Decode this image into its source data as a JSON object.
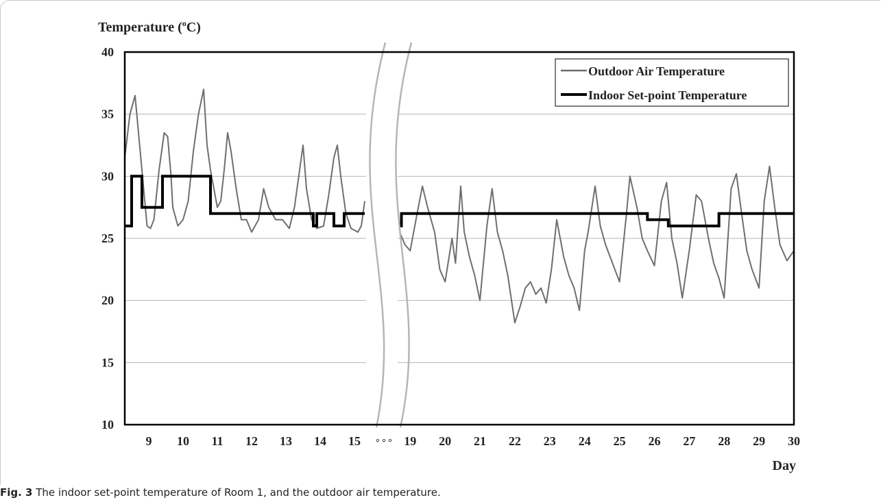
{
  "figure": {
    "caption_label": "Fig. 3",
    "caption_text": "The indoor set-point temperature of Room 1, and the outdoor air temperature."
  },
  "chart_data": {
    "type": "line",
    "ylabel_main": "Temperature (",
    "ylabel_sup": "o",
    "ylabel_end": "C)",
    "xlabel": "Day",
    "ylim": [
      10,
      40
    ],
    "yticks": [
      10,
      15,
      20,
      25,
      30,
      35,
      40
    ],
    "grid": true,
    "legend_position": "top-right",
    "axis_break": {
      "after_day": 15,
      "before_day": 19,
      "marker_text": "° ° °"
    },
    "segments": [
      {
        "xlim": [
          8.3,
          15.3
        ],
        "xticks": [
          9,
          10,
          11,
          12,
          13,
          14,
          15
        ]
      },
      {
        "xlim": [
          18.7,
          30.0
        ],
        "xticks": [
          19,
          20,
          21,
          22,
          23,
          24,
          25,
          26,
          27,
          28,
          29,
          30
        ]
      }
    ],
    "series": [
      {
        "name": "Outdoor Air Temperature",
        "color": "#6e6e6e",
        "style": "thin",
        "x": [
          8.3,
          8.45,
          8.6,
          8.75,
          8.85,
          8.95,
          9.05,
          9.15,
          9.3,
          9.45,
          9.55,
          9.65,
          9.7,
          9.85,
          10.0,
          10.15,
          10.3,
          10.45,
          10.6,
          10.7,
          10.8,
          10.9,
          11.0,
          11.1,
          11.2,
          11.3,
          11.4,
          11.55,
          11.7,
          11.85,
          12.0,
          12.2,
          12.35,
          12.5,
          12.7,
          12.9,
          13.1,
          13.25,
          13.4,
          13.5,
          13.6,
          13.75,
          13.9,
          14.1,
          14.25,
          14.4,
          14.5,
          14.6,
          14.75,
          14.9,
          15.1,
          15.2,
          15.3,
          18.7,
          18.85,
          19.0,
          19.2,
          19.35,
          19.5,
          19.7,
          19.85,
          20.0,
          20.2,
          20.3,
          20.45,
          20.55,
          20.7,
          20.85,
          21.0,
          21.2,
          21.35,
          21.5,
          21.65,
          21.8,
          22.0,
          22.15,
          22.3,
          22.45,
          22.6,
          22.75,
          22.9,
          23.05,
          23.2,
          23.4,
          23.55,
          23.7,
          23.85,
          24.0,
          24.1,
          24.3,
          24.45,
          24.6,
          24.8,
          25.0,
          25.2,
          25.3,
          25.5,
          25.65,
          25.8,
          26.0,
          26.2,
          26.35,
          26.5,
          26.65,
          26.8,
          27.0,
          27.2,
          27.35,
          27.55,
          27.7,
          27.85,
          28.0,
          28.2,
          28.35,
          28.5,
          28.65,
          28.8,
          29.0,
          29.15,
          29.3,
          29.45,
          29.6,
          29.8,
          30.0
        ],
        "y": [
          31.5,
          35.0,
          36.5,
          32.0,
          29.0,
          26.0,
          25.8,
          26.5,
          30.5,
          33.5,
          33.2,
          30.0,
          27.5,
          26.0,
          26.5,
          28.0,
          32.0,
          35.0,
          37.0,
          32.5,
          30.5,
          29.0,
          27.5,
          28.0,
          30.5,
          33.5,
          32.0,
          29.0,
          26.5,
          26.5,
          25.5,
          26.5,
          29.0,
          27.5,
          26.5,
          26.5,
          25.8,
          27.5,
          30.5,
          32.5,
          29.0,
          26.5,
          25.8,
          26.0,
          28.5,
          31.5,
          32.5,
          30.0,
          27.0,
          25.8,
          25.5,
          26.0,
          28.0,
          25.5,
          24.5,
          24.0,
          27.0,
          29.2,
          27.5,
          25.5,
          22.5,
          21.5,
          25.0,
          23.0,
          29.2,
          25.5,
          23.5,
          22.0,
          20.0,
          26.0,
          29.0,
          25.5,
          24.0,
          22.0,
          18.2,
          19.5,
          21.0,
          21.5,
          20.5,
          21.0,
          19.8,
          22.5,
          26.5,
          23.5,
          22.0,
          21.0,
          19.2,
          24.0,
          25.5,
          29.2,
          26.0,
          24.5,
          23.0,
          21.5,
          27.0,
          30.0,
          27.5,
          25.0,
          24.0,
          22.8,
          28.0,
          29.5,
          25.0,
          23.0,
          20.2,
          24.0,
          28.5,
          28.0,
          25.0,
          23.0,
          21.8,
          20.2,
          29.0,
          30.2,
          27.0,
          24.0,
          22.5,
          21.0,
          28.0,
          30.8,
          27.5,
          24.5,
          23.2,
          24.0
        ]
      },
      {
        "name": "Indoor Set-point Temperature",
        "color": "#000000",
        "style": "thick-step",
        "x": [
          8.3,
          8.35,
          8.35,
          8.5,
          8.5,
          8.8,
          8.8,
          9.4,
          9.4,
          10.8,
          10.8,
          13.8,
          13.8,
          13.9,
          13.9,
          14.4,
          14.4,
          14.7,
          14.7,
          15.3,
          18.7,
          18.75,
          18.75,
          25.8,
          25.8,
          26.4,
          26.4,
          27.85,
          27.85,
          30.0
        ],
        "y": [
          26.0,
          26.0,
          26.0,
          26.0,
          30.0,
          30.0,
          27.5,
          27.5,
          30.0,
          30.0,
          27.0,
          27.0,
          26.0,
          26.0,
          27.0,
          27.0,
          26.0,
          26.0,
          27.0,
          27.0,
          26.0,
          26.0,
          27.0,
          27.0,
          26.5,
          26.5,
          26.0,
          26.0,
          27.0,
          27.0
        ]
      }
    ]
  }
}
